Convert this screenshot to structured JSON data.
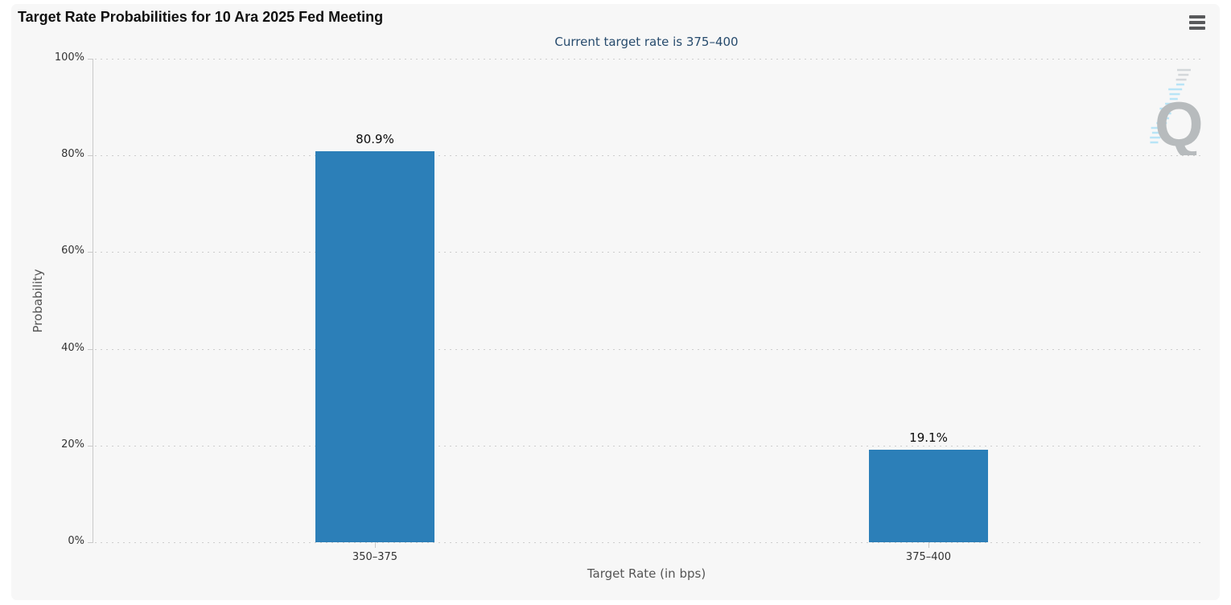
{
  "page": {
    "background": "#ffffff",
    "card_background": "#f7f7f7"
  },
  "header": {
    "title": "Target Rate Probabilities for 10 Ara 2025 Fed Meeting",
    "subtitle": "Current target rate is 375–400",
    "menu_icon": "hamburger-menu-icon"
  },
  "watermark": {
    "label": "Q"
  },
  "chart_data": {
    "type": "bar",
    "title": "Target Rate Probabilities for 10 Ara 2025 Fed Meeting",
    "subtitle": "Current target rate is 375–400",
    "categories": [
      "350–375",
      "375–400"
    ],
    "values": [
      80.9,
      19.1
    ],
    "value_labels": [
      "80.9%",
      "19.1%"
    ],
    "xlabel": "Target Rate (in bps)",
    "ylabel": "Probability",
    "ylim": [
      0,
      100
    ],
    "ytick_step": 20,
    "ytick_labels": [
      "0%",
      "20%",
      "40%",
      "60%",
      "80%",
      "100%"
    ],
    "grid": "horizontal-dotted",
    "legend": "none",
    "bar_color": "#2c7fb8",
    "axis_color": "#c9c9c9",
    "tick_label_color": "#333333",
    "axis_title_color": "#555555",
    "subtitle_color": "#274b6d"
  }
}
